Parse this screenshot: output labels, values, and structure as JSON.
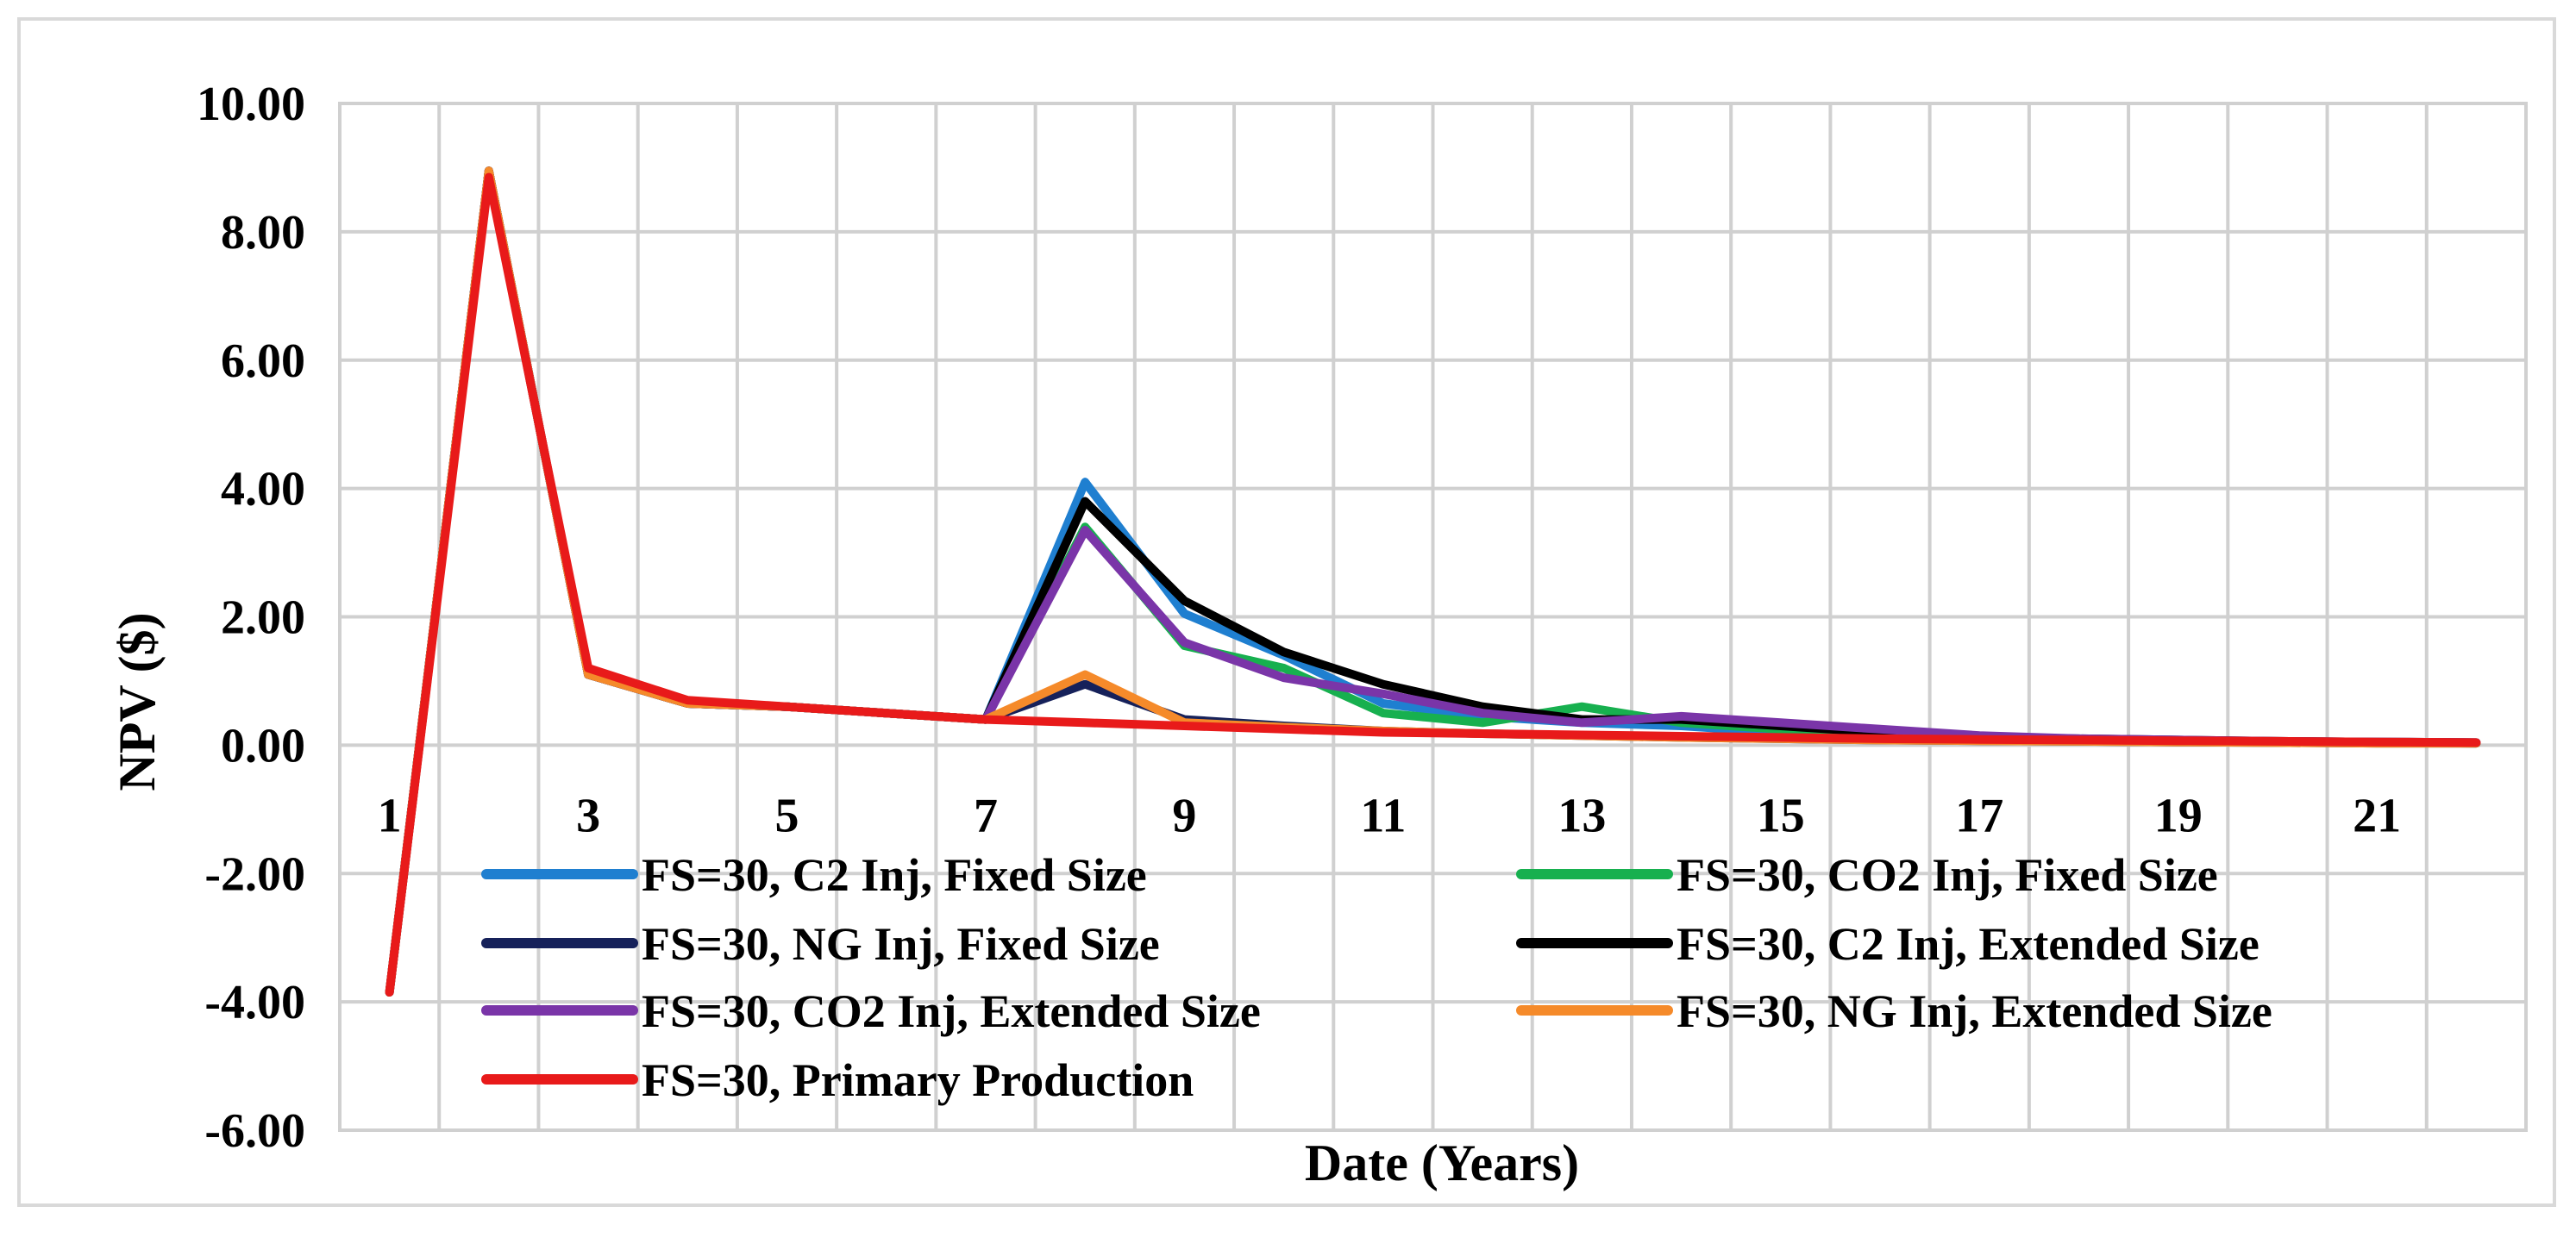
{
  "chart_data": {
    "type": "line",
    "title": "",
    "xlabel": "Date (Years)",
    "ylabel": "NPV ($)",
    "ylim": [
      -6,
      10
    ],
    "yticks": [
      "10.00",
      "8.00",
      "6.00",
      "4.00",
      "2.00",
      "0.00",
      "-2.00",
      "-4.00",
      "-6.00"
    ],
    "ytick_values": [
      10,
      8,
      6,
      4,
      2,
      0,
      -2,
      -4,
      -6
    ],
    "x": [
      1,
      2,
      3,
      4,
      5,
      6,
      7,
      8,
      9,
      10,
      11,
      12,
      13,
      14,
      15,
      16,
      17,
      18,
      19,
      20,
      21,
      22
    ],
    "xticks": [
      "1",
      "3",
      "5",
      "7",
      "9",
      "11",
      "13",
      "15",
      "17",
      "19",
      "21"
    ],
    "xtick_values": [
      1,
      3,
      5,
      7,
      9,
      11,
      13,
      15,
      17,
      19,
      21
    ],
    "grid": true,
    "legend_position": "lower-center",
    "series": [
      {
        "name": "FS=30, C2 Inj, Fixed Size",
        "color": "#1f7fd0",
        "values": [
          -3.85,
          8.95,
          1.1,
          0.65,
          0.6,
          0.5,
          0.4,
          4.1,
          2.05,
          1.4,
          0.65,
          0.45,
          0.35,
          0.3,
          0.2,
          0.12,
          0.1,
          0.08,
          0.06,
          0.05,
          0.04,
          0.03
        ]
      },
      {
        "name": "FS=30, CO2 Inj, Fixed Size",
        "color": "#17b04f",
        "values": [
          -3.85,
          8.95,
          1.1,
          0.65,
          0.6,
          0.5,
          0.4,
          3.4,
          1.55,
          1.2,
          0.5,
          0.35,
          0.6,
          0.35,
          0.25,
          0.15,
          0.1,
          0.08,
          0.06,
          0.05,
          0.04,
          0.03
        ]
      },
      {
        "name": "FS=30, NG Inj, Fixed Size",
        "color": "#16215a",
        "values": [
          -3.85,
          8.95,
          1.1,
          0.65,
          0.6,
          0.5,
          0.4,
          0.95,
          0.4,
          0.3,
          0.22,
          0.18,
          0.15,
          0.12,
          0.1,
          0.08,
          0.07,
          0.06,
          0.05,
          0.04,
          0.03,
          0.03
        ]
      },
      {
        "name": "FS=30, C2 Inj, Extended Size",
        "color": "#000000",
        "values": [
          -3.85,
          8.95,
          1.1,
          0.65,
          0.6,
          0.5,
          0.4,
          3.8,
          2.25,
          1.45,
          0.95,
          0.6,
          0.4,
          0.4,
          0.3,
          0.2,
          0.12,
          0.1,
          0.08,
          0.06,
          0.05,
          0.04
        ]
      },
      {
        "name": "FS=30, CO2 Inj, Extended Size",
        "color": "#7a35a8",
        "values": [
          -3.85,
          8.95,
          1.1,
          0.65,
          0.6,
          0.5,
          0.4,
          3.35,
          1.6,
          1.05,
          0.8,
          0.5,
          0.35,
          0.45,
          0.35,
          0.25,
          0.15,
          0.1,
          0.08,
          0.06,
          0.05,
          0.04
        ]
      },
      {
        "name": "FS=30, NG Inj, Extended Size",
        "color": "#f58a2a",
        "values": [
          -3.85,
          8.95,
          1.1,
          0.65,
          0.6,
          0.5,
          0.4,
          1.1,
          0.35,
          0.28,
          0.22,
          0.18,
          0.15,
          0.12,
          0.1,
          0.08,
          0.07,
          0.06,
          0.05,
          0.04,
          0.03,
          0.03
        ]
      },
      {
        "name": "FS=30, Primary Production",
        "color": "#e81a1a",
        "values": [
          -3.85,
          8.85,
          1.2,
          0.7,
          0.6,
          0.5,
          0.4,
          0.35,
          0.3,
          0.25,
          0.2,
          0.18,
          0.16,
          0.14,
          0.12,
          0.1,
          0.09,
          0.08,
          0.07,
          0.06,
          0.05,
          0.04
        ]
      }
    ]
  }
}
